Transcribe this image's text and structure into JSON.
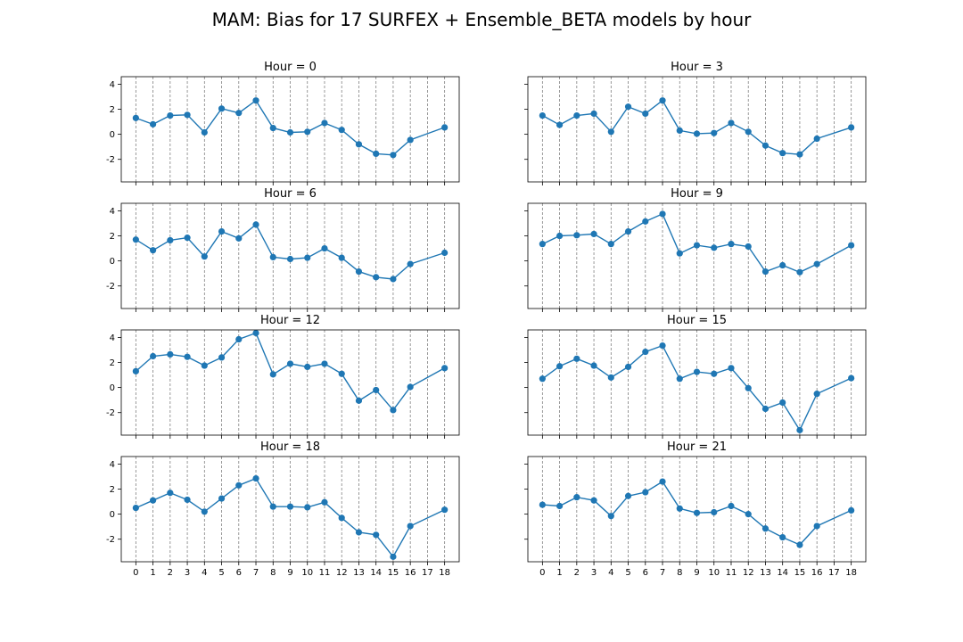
{
  "title": "MAM: Bias for 17 SURFEX + Ensemble_BETA models by hour",
  "chart_data": [
    {
      "type": "line",
      "title": "Hour = 0",
      "x": [
        0,
        1,
        2,
        3,
        4,
        5,
        6,
        7,
        8,
        9,
        10,
        11,
        12,
        13,
        14,
        15,
        16,
        18
      ],
      "y": [
        1.3,
        0.8,
        1.5,
        1.55,
        0.15,
        2.05,
        1.7,
        2.7,
        0.5,
        0.15,
        0.2,
        0.9,
        0.35,
        -0.8,
        -1.55,
        -1.65,
        -0.45,
        0.55
      ],
      "xticks": [
        "0",
        "1",
        "2",
        "3",
        "4",
        "5",
        "6",
        "7",
        "8",
        "9",
        "10",
        "11",
        "12",
        "13",
        "14",
        "15",
        "16",
        "17",
        "18"
      ],
      "yticks": [
        "-2",
        "0",
        "2",
        "4"
      ],
      "ylim": [
        -3.8,
        4.6
      ],
      "grid": "x-dashed"
    },
    {
      "type": "line",
      "title": "Hour = 3",
      "x": [
        0,
        1,
        2,
        3,
        4,
        5,
        6,
        7,
        8,
        9,
        10,
        11,
        12,
        13,
        14,
        15,
        16,
        18
      ],
      "y": [
        1.5,
        0.75,
        1.5,
        1.65,
        0.2,
        2.2,
        1.65,
        2.7,
        0.3,
        0.05,
        0.1,
        0.9,
        0.2,
        -0.9,
        -1.5,
        -1.6,
        -0.35,
        0.55
      ],
      "xticks": [
        "0",
        "1",
        "2",
        "3",
        "4",
        "5",
        "6",
        "7",
        "8",
        "9",
        "10",
        "11",
        "12",
        "13",
        "14",
        "15",
        "16",
        "17",
        "18"
      ],
      "yticks": [
        "-2",
        "0",
        "2",
        "4"
      ],
      "ylim": [
        -3.8,
        4.6
      ],
      "grid": "x-dashed"
    },
    {
      "type": "line",
      "title": "Hour = 6",
      "x": [
        0,
        1,
        2,
        3,
        4,
        5,
        6,
        7,
        8,
        9,
        10,
        11,
        12,
        13,
        14,
        15,
        16,
        18
      ],
      "y": [
        1.7,
        0.85,
        1.65,
        1.85,
        0.35,
        2.35,
        1.8,
        2.9,
        0.3,
        0.15,
        0.25,
        1.0,
        0.25,
        -0.85,
        -1.3,
        -1.45,
        -0.25,
        0.65
      ],
      "xticks": [
        "0",
        "1",
        "2",
        "3",
        "4",
        "5",
        "6",
        "7",
        "8",
        "9",
        "10",
        "11",
        "12",
        "13",
        "14",
        "15",
        "16",
        "17",
        "18"
      ],
      "yticks": [
        "-2",
        "0",
        "2",
        "4"
      ],
      "ylim": [
        -3.8,
        4.6
      ],
      "grid": "x-dashed"
    },
    {
      "type": "line",
      "title": "Hour = 9",
      "x": [
        0,
        1,
        2,
        3,
        4,
        5,
        6,
        7,
        8,
        9,
        10,
        11,
        12,
        13,
        14,
        15,
        16,
        18
      ],
      "y": [
        1.35,
        2.0,
        2.05,
        2.15,
        1.35,
        2.35,
        3.15,
        3.75,
        0.6,
        1.25,
        1.05,
        1.35,
        1.15,
        -0.85,
        -0.35,
        -0.9,
        -0.25,
        1.25
      ],
      "xticks": [
        "0",
        "1",
        "2",
        "3",
        "4",
        "5",
        "6",
        "7",
        "8",
        "9",
        "10",
        "11",
        "12",
        "13",
        "14",
        "15",
        "16",
        "17",
        "18"
      ],
      "yticks": [
        "-2",
        "0",
        "2",
        "4"
      ],
      "ylim": [
        -3.8,
        4.6
      ],
      "grid": "x-dashed"
    },
    {
      "type": "line",
      "title": "Hour = 12",
      "x": [
        0,
        1,
        2,
        3,
        4,
        5,
        6,
        7,
        8,
        9,
        10,
        11,
        12,
        13,
        14,
        15,
        16,
        18
      ],
      "y": [
        1.3,
        2.5,
        2.65,
        2.45,
        1.75,
        2.4,
        3.85,
        4.35,
        1.05,
        1.9,
        1.65,
        1.9,
        1.1,
        -1.05,
        -0.2,
        -1.8,
        0.05,
        1.55
      ],
      "xticks": [
        "0",
        "1",
        "2",
        "3",
        "4",
        "5",
        "6",
        "7",
        "8",
        "9",
        "10",
        "11",
        "12",
        "13",
        "14",
        "15",
        "16",
        "17",
        "18"
      ],
      "yticks": [
        "-2",
        "0",
        "2",
        "4"
      ],
      "ylim": [
        -3.8,
        4.6
      ],
      "grid": "x-dashed"
    },
    {
      "type": "line",
      "title": "Hour = 15",
      "x": [
        0,
        1,
        2,
        3,
        4,
        5,
        6,
        7,
        8,
        9,
        10,
        11,
        12,
        13,
        14,
        15,
        16,
        18
      ],
      "y": [
        0.7,
        1.7,
        2.3,
        1.75,
        0.8,
        1.65,
        2.85,
        3.35,
        0.7,
        1.25,
        1.1,
        1.55,
        -0.05,
        -1.7,
        -1.2,
        -3.4,
        -0.5,
        0.75
      ],
      "xticks": [
        "0",
        "1",
        "2",
        "3",
        "4",
        "5",
        "6",
        "7",
        "8",
        "9",
        "10",
        "11",
        "12",
        "13",
        "14",
        "15",
        "16",
        "17",
        "18"
      ],
      "yticks": [
        "-2",
        "0",
        "2",
        "4"
      ],
      "ylim": [
        -3.8,
        4.6
      ],
      "grid": "x-dashed"
    },
    {
      "type": "line",
      "title": "Hour = 18",
      "x": [
        0,
        1,
        2,
        3,
        4,
        5,
        6,
        7,
        8,
        9,
        10,
        11,
        12,
        13,
        14,
        15,
        16,
        18
      ],
      "y": [
        0.5,
        1.1,
        1.7,
        1.15,
        0.2,
        1.25,
        2.3,
        2.85,
        0.6,
        0.6,
        0.55,
        0.95,
        -0.3,
        -1.45,
        -1.65,
        -3.4,
        -0.95,
        0.35
      ],
      "xticks": [
        "0",
        "1",
        "2",
        "3",
        "4",
        "5",
        "6",
        "7",
        "8",
        "9",
        "10",
        "11",
        "12",
        "13",
        "14",
        "15",
        "16",
        "17",
        "18"
      ],
      "yticks": [
        "-2",
        "0",
        "2",
        "4"
      ],
      "ylim": [
        -3.8,
        4.6
      ],
      "grid": "x-dashed"
    },
    {
      "type": "line",
      "title": "Hour = 21",
      "x": [
        0,
        1,
        2,
        3,
        4,
        5,
        6,
        7,
        8,
        9,
        10,
        11,
        12,
        13,
        14,
        15,
        16,
        18
      ],
      "y": [
        0.75,
        0.65,
        1.35,
        1.1,
        -0.15,
        1.45,
        1.75,
        2.6,
        0.45,
        0.1,
        0.15,
        0.65,
        0.0,
        -1.15,
        -1.85,
        -2.45,
        -0.95,
        0.3
      ],
      "xticks": [
        "0",
        "1",
        "2",
        "3",
        "4",
        "5",
        "6",
        "7",
        "8",
        "9",
        "10",
        "11",
        "12",
        "13",
        "14",
        "15",
        "16",
        "17",
        "18"
      ],
      "yticks": [
        "-2",
        "0",
        "2",
        "4"
      ],
      "ylim": [
        -3.8,
        4.6
      ],
      "grid": "x-dashed"
    }
  ],
  "style": {
    "line_color": "#1f77b4",
    "grid_color": "#808080",
    "axis_color": "#000000"
  }
}
